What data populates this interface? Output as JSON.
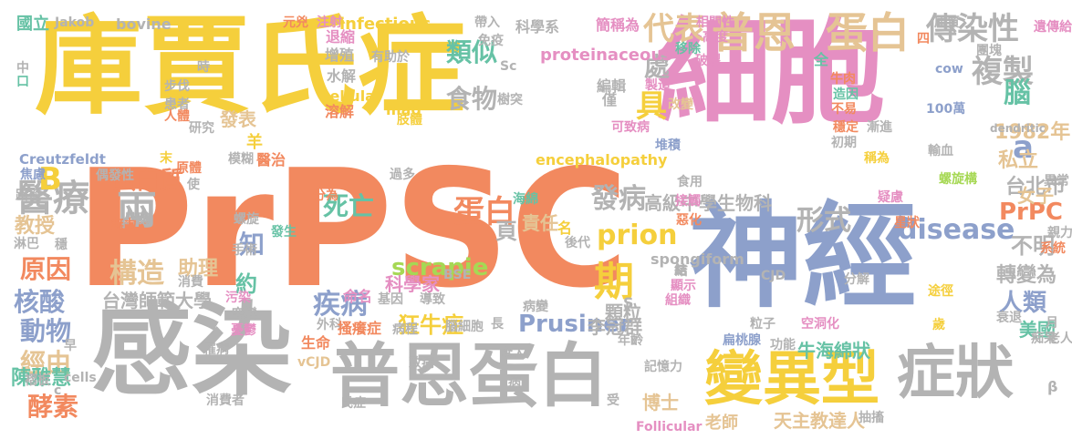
{
  "palette": {
    "yellow": "#f5cf3c",
    "orange": "#f2895f",
    "pink": "#e58fc2",
    "gray": "#b3b3b3",
    "blue": "#8da0cb",
    "green": "#a6d854",
    "tan": "#e5c494",
    "teal": "#66c2a5"
  },
  "words": [
    {
      "text": "PrPSC",
      "color": "orange"
    },
    {
      "text": "庫賈氏症",
      "color": "yellow"
    },
    {
      "text": "細胞",
      "color": "pink"
    },
    {
      "text": "神經",
      "color": "blue"
    },
    {
      "text": "感染",
      "color": "gray"
    },
    {
      "text": "普恩蛋白",
      "color": "gray"
    },
    {
      "text": "變異型",
      "color": "yellow"
    },
    {
      "text": "症狀",
      "color": "gray"
    },
    {
      "text": "醫療",
      "color": "gray"
    },
    {
      "text": "普恩",
      "color": "tan"
    },
    {
      "text": "蛋白",
      "color": "tan"
    },
    {
      "text": "傳染性",
      "color": "gray"
    },
    {
      "text": "複製",
      "color": "gray"
    },
    {
      "text": "代表",
      "color": "tan"
    },
    {
      "text": "prion",
      "color": "yellow"
    },
    {
      "text": "disease",
      "color": "blue"
    },
    {
      "text": "scrapie",
      "color": "green"
    },
    {
      "text": "Prusiner",
      "color": "blue"
    },
    {
      "text": "PrPC",
      "color": "orange"
    },
    {
      "text": "蛋白質",
      "color": "orange"
    },
    {
      "text": "構造",
      "color": "tan"
    },
    {
      "text": "疾病",
      "color": "blue"
    },
    {
      "text": "死亡",
      "color": "teal"
    },
    {
      "text": "狂牛症",
      "color": "yellow"
    },
    {
      "text": "兩",
      "color": "gray"
    },
    {
      "text": "蛋白",
      "color": "orange"
    },
    {
      "text": "發病",
      "color": "gray"
    },
    {
      "text": "形式",
      "color": "gray"
    },
    {
      "text": "高級中學生物科",
      "color": "gray"
    },
    {
      "text": "類似",
      "color": "teal"
    },
    {
      "text": "食物",
      "color": "gray"
    },
    {
      "text": "具",
      "color": "yellow"
    },
    {
      "text": "處",
      "color": "gray"
    },
    {
      "text": "期",
      "color": "yellow"
    },
    {
      "text": "知",
      "color": "blue"
    },
    {
      "text": "約",
      "color": "teal"
    },
    {
      "text": "原因",
      "color": "orange"
    },
    {
      "text": "核酸",
      "color": "blue"
    },
    {
      "text": "動物",
      "color": "blue"
    },
    {
      "text": "經由",
      "color": "tan"
    },
    {
      "text": "陳雅慧",
      "color": "teal"
    },
    {
      "text": "酵素",
      "color": "orange"
    },
    {
      "text": "台灣師範大學",
      "color": "gray"
    },
    {
      "text": "助理",
      "color": "tan"
    },
    {
      "text": "教授",
      "color": "tan"
    },
    {
      "text": "B",
      "color": "yellow"
    },
    {
      "text": "a",
      "color": "blue"
    },
    {
      "text": "腦",
      "color": "teal"
    },
    {
      "text": "1982年",
      "color": "tan"
    },
    {
      "text": "私立",
      "color": "tan"
    },
    {
      "text": "台北市",
      "color": "gray"
    },
    {
      "text": "女子",
      "color": "tan"
    },
    {
      "text": "不明",
      "color": "gray"
    },
    {
      "text": "轉變為",
      "color": "gray"
    },
    {
      "text": "人類",
      "color": "blue"
    },
    {
      "text": "美國",
      "color": "teal"
    },
    {
      "text": "牛海綿狀",
      "color": "teal"
    },
    {
      "text": "天主教達人",
      "color": "tan"
    },
    {
      "text": "老師",
      "color": "tan"
    },
    {
      "text": "博士",
      "color": "tan"
    },
    {
      "text": "李冠群",
      "color": "gray"
    },
    {
      "text": "科學家",
      "color": "pink"
    },
    {
      "text": "發表",
      "color": "tan"
    },
    {
      "text": "責任",
      "color": "tan"
    },
    {
      "text": "頁",
      "color": "gray"
    },
    {
      "text": "顆粒",
      "color": "gray"
    },
    {
      "text": "spongiform",
      "color": "gray"
    },
    {
      "text": "encephalopathy",
      "color": "yellow"
    },
    {
      "text": "proteinaceous",
      "color": "pink"
    },
    {
      "text": "infectious",
      "color": "yellow"
    },
    {
      "text": "cellular",
      "color": "yellow"
    },
    {
      "text": "mad",
      "color": "yellow"
    },
    {
      "text": "bovine",
      "color": "gray"
    },
    {
      "text": "Jakob",
      "color": "gray"
    },
    {
      "text": "Creutzfeldt",
      "color": "blue"
    },
    {
      "text": "cells",
      "color": "gray"
    },
    {
      "text": "vCJD",
      "color": "tan"
    },
    {
      "text": "BSE",
      "color": "gray"
    },
    {
      "text": "CJD",
      "color": "gray"
    },
    {
      "text": "Follicular",
      "color": "pink"
    },
    {
      "text": "dendritic",
      "color": "gray"
    },
    {
      "text": "100萬",
      "color": "blue"
    },
    {
      "text": "cow",
      "color": "blue"
    },
    {
      "text": "Sc",
      "color": "gray"
    },
    {
      "text": "S",
      "color": "gray"
    },
    {
      "text": "β",
      "color": "gray"
    },
    {
      "text": "c",
      "color": "gray"
    },
    {
      "text": "國立",
      "color": "teal"
    },
    {
      "text": "元兇",
      "color": "orange"
    },
    {
      "text": "注射",
      "color": "pink"
    },
    {
      "text": "帶入",
      "color": "gray"
    },
    {
      "text": "科學系",
      "color": "gray"
    },
    {
      "text": "相關性",
      "color": "pink"
    },
    {
      "text": "庫賈",
      "color": "gray"
    },
    {
      "text": "遺傳給",
      "color": "pink"
    },
    {
      "text": "四",
      "color": "orange"
    },
    {
      "text": "團塊",
      "color": "gray"
    },
    {
      "text": "簡稱為",
      "color": "pink"
    },
    {
      "text": "高度",
      "color": "pink"
    },
    {
      "text": "移除",
      "color": "teal"
    },
    {
      "text": "破裂",
      "color": "pink"
    },
    {
      "text": "牛肉",
      "color": "orange"
    },
    {
      "text": "退縮",
      "color": "pink"
    },
    {
      "text": "免疫",
      "color": "gray"
    },
    {
      "text": "增殖",
      "color": "gray"
    },
    {
      "text": "水解",
      "color": "gray"
    },
    {
      "text": "有助於",
      "color": "gray"
    },
    {
      "text": "編輯",
      "color": "gray"
    },
    {
      "text": "製造",
      "color": "pink"
    },
    {
      "text": "改變",
      "color": "tan"
    },
    {
      "text": "可致病",
      "color": "pink"
    },
    {
      "text": "堆積",
      "color": "blue"
    },
    {
      "text": "僅",
      "color": "gray"
    },
    {
      "text": "造因",
      "color": "teal"
    },
    {
      "text": "不易",
      "color": "orange"
    },
    {
      "text": "穩定",
      "color": "orange"
    },
    {
      "text": "初期",
      "color": "gray"
    },
    {
      "text": "漸進",
      "color": "gray"
    },
    {
      "text": "輸血",
      "color": "gray"
    },
    {
      "text": "稱為",
      "color": "yellow"
    },
    {
      "text": "異常",
      "color": "gray"
    },
    {
      "text": "螺旋構",
      "color": "green"
    },
    {
      "text": "疑慮",
      "color": "pink"
    },
    {
      "text": "星狀",
      "color": "orange"
    },
    {
      "text": "親力",
      "color": "gray"
    },
    {
      "text": "系統",
      "color": "orange"
    },
    {
      "text": "樹突",
      "color": "gray"
    },
    {
      "text": "溶解",
      "color": "orange"
    },
    {
      "text": "肢體",
      "color": "yellow"
    },
    {
      "text": "步伐",
      "color": "gray"
    },
    {
      "text": "患者",
      "color": "gray"
    },
    {
      "text": "人體",
      "color": "orange"
    },
    {
      "text": "研究",
      "color": "gray"
    },
    {
      "text": "焦慮",
      "color": "blue"
    },
    {
      "text": "偶發性",
      "color": "gray"
    },
    {
      "text": "模糊",
      "color": "gray"
    },
    {
      "text": "醫治",
      "color": "orange"
    },
    {
      "text": "羊",
      "color": "yellow"
    },
    {
      "text": "末",
      "color": "yellow"
    },
    {
      "text": "原體",
      "color": "orange"
    },
    {
      "text": "路徑",
      "color": "gray"
    },
    {
      "text": "使",
      "color": "gray"
    },
    {
      "text": "過多",
      "color": "gray"
    },
    {
      "text": "分為",
      "color": "orange"
    },
    {
      "text": "海綿",
      "color": "teal"
    },
    {
      "text": "食用",
      "color": "gray"
    },
    {
      "text": "接觸",
      "color": "pink"
    },
    {
      "text": "惡化",
      "color": "orange"
    },
    {
      "text": "後代",
      "color": "gray"
    },
    {
      "text": "名",
      "color": "yellow"
    },
    {
      "text": "脾臟",
      "color": "gray"
    },
    {
      "text": "無力",
      "color": "orange"
    },
    {
      "text": "螺旋",
      "color": "gray"
    },
    {
      "text": "發生",
      "color": "teal"
    },
    {
      "text": "淋巴",
      "color": "gray"
    },
    {
      "text": "穩",
      "color": "gray"
    },
    {
      "text": "手術",
      "color": "gray"
    },
    {
      "text": "消費",
      "color": "gray"
    },
    {
      "text": "污染",
      "color": "pink"
    },
    {
      "text": "突變",
      "color": "gray"
    },
    {
      "text": "憂鬱",
      "color": "pink"
    },
    {
      "text": "外科",
      "color": "gray"
    },
    {
      "text": "命名",
      "color": "pink"
    },
    {
      "text": "導致",
      "color": "gray"
    },
    {
      "text": "基因",
      "color": "gray"
    },
    {
      "text": "病程",
      "color": "gray"
    },
    {
      "text": "腦細胞",
      "color": "gray"
    },
    {
      "text": "結",
      "color": "gray"
    },
    {
      "text": "顯示",
      "color": "pink"
    },
    {
      "text": "組織",
      "color": "pink"
    },
    {
      "text": "病變",
      "color": "gray"
    },
    {
      "text": "途徑",
      "color": "yellow"
    },
    {
      "text": "粒子",
      "color": "gray"
    },
    {
      "text": "空洞化",
      "color": "pink"
    },
    {
      "text": "分解",
      "color": "gray"
    },
    {
      "text": "歲",
      "color": "yellow"
    },
    {
      "text": "衰退",
      "color": "gray"
    },
    {
      "text": "功能",
      "color": "gray"
    },
    {
      "text": "扁桃腺",
      "color": "blue"
    },
    {
      "text": "長",
      "color": "gray"
    },
    {
      "text": "食入",
      "color": "gray"
    },
    {
      "text": "年齡",
      "color": "gray"
    },
    {
      "text": "記憶力",
      "color": "gray"
    },
    {
      "text": "痴呆",
      "color": "gray"
    },
    {
      "text": "老人",
      "color": "gray"
    },
    {
      "text": "月",
      "color": "gray"
    },
    {
      "text": "生命",
      "color": "orange"
    },
    {
      "text": "搔癢症",
      "color": "orange"
    },
    {
      "text": "罹病",
      "color": "gray"
    },
    {
      "text": "致病",
      "color": "gray"
    },
    {
      "text": "病",
      "color": "gray"
    },
    {
      "text": "受",
      "color": "gray"
    },
    {
      "text": "褶板",
      "color": "gray"
    },
    {
      "text": "消費者",
      "color": "gray"
    },
    {
      "text": "氏症",
      "color": "gray"
    },
    {
      "text": "抽搐",
      "color": "gray"
    },
    {
      "text": "中",
      "color": "gray"
    },
    {
      "text": "口",
      "color": "teal"
    },
    {
      "text": "時",
      "color": "gray"
    },
    {
      "text": "早",
      "color": "gray"
    },
    {
      "text": "全",
      "color": "teal"
    },
    {
      "text": "結",
      "color": "gray"
    }
  ]
}
